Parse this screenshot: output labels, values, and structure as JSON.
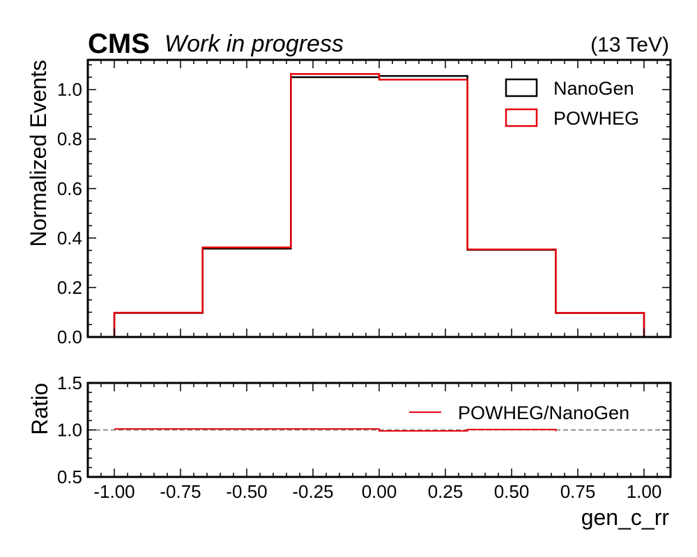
{
  "header": {
    "experiment": "CMS",
    "status": "Work in progress",
    "energy": "(13 TeV)"
  },
  "chart_data": [
    {
      "panel": "main",
      "type": "step",
      "bin_edges": [
        -1.0,
        -0.6667,
        -0.3333,
        0.0,
        0.3333,
        0.6667,
        1.0
      ],
      "series": [
        {
          "name": "NanoGen",
          "color": "#000000",
          "values": [
            0.097,
            0.357,
            1.05,
            1.055,
            0.352,
            0.097
          ]
        },
        {
          "name": "POWHEG",
          "color": "#e8000b",
          "values": [
            0.098,
            0.362,
            1.063,
            1.04,
            0.354,
            0.097
          ]
        }
      ],
      "ylabel": "Normalized Events",
      "xlim": [
        -1.1,
        1.1
      ],
      "ylim": [
        0.0,
        1.12
      ],
      "yticks": [
        "0.0",
        "0.2",
        "0.4",
        "0.6",
        "0.8",
        "1.0"
      ],
      "legend_location": "top-right"
    },
    {
      "panel": "ratio",
      "type": "step",
      "bin_edges": [
        -1.0,
        -0.6667,
        -0.3333,
        0.0,
        0.3333,
        0.6667
      ],
      "series": [
        {
          "name": "POWHEG/NanoGen",
          "color": "#e8000b",
          "values": [
            1.01,
            1.01,
            1.01,
            0.99,
            1.005
          ]
        }
      ],
      "reference_line": 1.0,
      "reference_color": "#808080",
      "ylabel": "Ratio",
      "xlabel": "gen_c_rr",
      "xlim": [
        -1.1,
        1.1
      ],
      "ylim": [
        0.5,
        1.5
      ],
      "yticks": [
        "0.5",
        "1.0",
        "1.5"
      ],
      "xticks": [
        "-1.00",
        "-0.75",
        "-0.50",
        "-0.25",
        "0.00",
        "0.25",
        "0.50",
        "0.75",
        "1.00"
      ],
      "legend_location": "top-right"
    }
  ]
}
